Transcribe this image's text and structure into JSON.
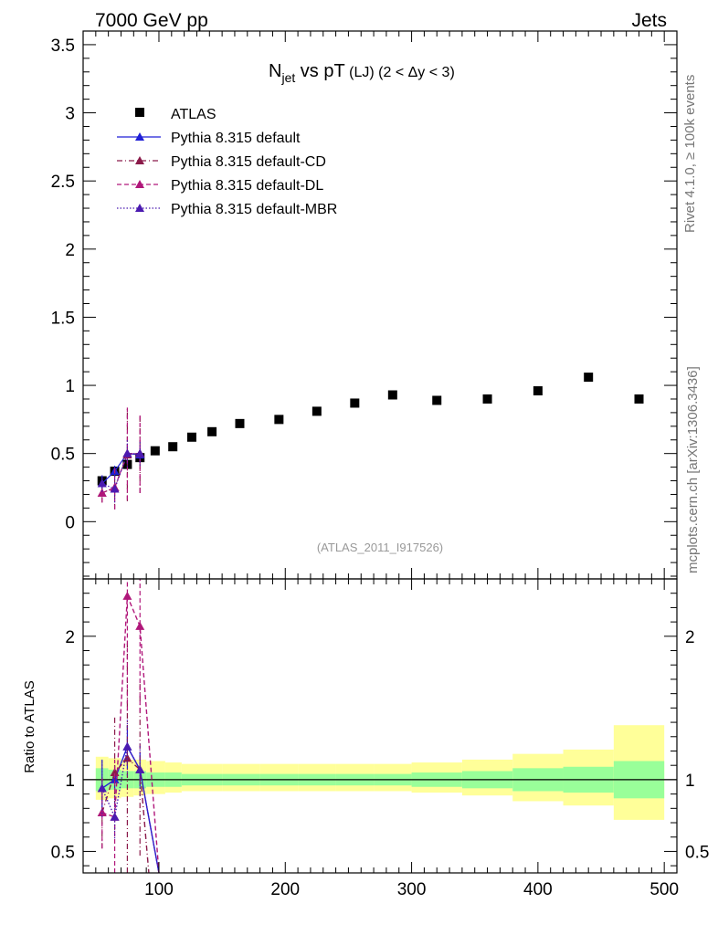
{
  "header": {
    "left": "7000 GeV pp",
    "right": "Jets"
  },
  "side_labels": {
    "rivet": "Rivet 4.1.0, ≥ 100k events",
    "mcplots": "mcplots.cern.ch [arXiv:1306.3436]"
  },
  "chart_data": {
    "type": "scatter",
    "title_main": "N",
    "title_sub": "jet",
    "title_rest": " vs pT",
    "title_small": " (LJ) ",
    "title_cond": "(2 < Δy < 3)",
    "analysis_tag": "(ATLAS_2011_I917526)",
    "x_axis": {
      "lim": [
        40,
        510
      ],
      "ticks": [
        100,
        200,
        300,
        400,
        500
      ],
      "tick_labels": [
        "100",
        "200",
        "300",
        "400",
        "500"
      ]
    },
    "main_panel": {
      "ylim": [
        -0.42,
        3.6
      ],
      "yticks": [
        0,
        0.5,
        1,
        1.5,
        2,
        2.5,
        3,
        3.5
      ],
      "ytick_labels": [
        "0",
        "0.5",
        "1",
        "1.5",
        "2",
        "2.5",
        "3",
        "3.5"
      ]
    },
    "ratio_panel": {
      "ylabel": "Ratio to ATLAS",
      "ylim": [
        0.35,
        2.4
      ],
      "yticks": [
        0.5,
        1,
        2
      ],
      "ytick_labels": [
        "0.5",
        "1",
        "2"
      ]
    },
    "legend": [
      {
        "label": "ATLAS",
        "color": "#000000",
        "style": "marker"
      },
      {
        "label": "Pythia 8.315 default",
        "color": "#1f1fd6",
        "style": "solid"
      },
      {
        "label": "Pythia 8.315 default-CD",
        "color": "#8b1a4a",
        "style": "dashdot"
      },
      {
        "label": "Pythia 8.315 default-DL",
        "color": "#b0177a",
        "style": "dashed"
      },
      {
        "label": "Pythia 8.315 default-MBR",
        "color": "#4b1ab0",
        "style": "dotted"
      }
    ],
    "atlas": {
      "x": [
        55,
        65,
        75,
        85,
        97,
        111,
        126,
        142,
        164,
        195,
        225,
        255,
        285,
        320,
        360,
        400,
        440,
        480
      ],
      "y": [
        0.3,
        0.37,
        0.42,
        0.47,
        0.52,
        0.55,
        0.62,
        0.66,
        0.72,
        0.75,
        0.81,
        0.87,
        0.93,
        0.89,
        0.9,
        0.96,
        1.06,
        0.9
      ],
      "bins": [
        [
          50,
          60
        ],
        [
          60,
          70
        ],
        [
          70,
          80
        ],
        [
          80,
          90
        ],
        [
          90,
          105
        ],
        [
          105,
          118
        ],
        [
          118,
          134
        ],
        [
          134,
          150
        ],
        [
          150,
          180
        ],
        [
          180,
          210
        ],
        [
          210,
          240
        ],
        [
          240,
          270
        ],
        [
          270,
          300
        ],
        [
          300,
          340
        ],
        [
          340,
          380
        ],
        [
          380,
          420
        ],
        [
          420,
          460
        ],
        [
          460,
          500
        ]
      ],
      "band_stat_lo": [
        0.92,
        0.93,
        0.94,
        0.94,
        0.95,
        0.95,
        0.96,
        0.96,
        0.96,
        0.96,
        0.96,
        0.96,
        0.96,
        0.95,
        0.94,
        0.92,
        0.91,
        0.87
      ],
      "band_stat_hi": [
        1.08,
        1.07,
        1.06,
        1.06,
        1.05,
        1.05,
        1.04,
        1.04,
        1.04,
        1.04,
        1.04,
        1.04,
        1.04,
        1.05,
        1.06,
        1.08,
        1.09,
        1.13
      ],
      "band_tot_lo": [
        0.86,
        0.87,
        0.88,
        0.89,
        0.9,
        0.91,
        0.92,
        0.92,
        0.92,
        0.92,
        0.92,
        0.92,
        0.92,
        0.91,
        0.89,
        0.85,
        0.82,
        0.72
      ],
      "band_tot_hi": [
        1.16,
        1.15,
        1.14,
        1.14,
        1.13,
        1.12,
        1.11,
        1.11,
        1.11,
        1.11,
        1.11,
        1.11,
        1.11,
        1.12,
        1.14,
        1.18,
        1.21,
        1.38
      ]
    },
    "series": [
      {
        "name": "Pythia 8.315 default",
        "color": "#1f1fd6",
        "dash": "",
        "x": [
          55,
          65,
          75,
          85
        ],
        "y": [
          0.28,
          0.37,
          0.5,
          0.49
        ],
        "err": [
          0.06,
          0.04,
          0.07,
          0.06
        ],
        "ratio": [
          0.94,
          1.0,
          1.23,
          1.07
        ],
        "ratio_err": [
          0.2,
          0.1,
          0.15,
          0.12
        ],
        "ratio_tail": [
          [
            85,
            1.07
          ],
          [
            100,
            0.2
          ]
        ]
      },
      {
        "name": "Pythia 8.315 default-CD",
        "color": "#8b1a4a",
        "dash": "6,3,1,3",
        "x": [
          55,
          65,
          75,
          85
        ],
        "y": [
          0.21,
          0.25,
          0.49,
          0.5
        ],
        "err": [
          0.07,
          0.16,
          0.34,
          0.29
        ],
        "ratio": [
          0.77,
          1.05,
          1.15,
          1.07
        ],
        "ratio_err": [
          0.25,
          0.4,
          0.8,
          0.6
        ],
        "ratio_tail": [
          [
            85,
            1.07
          ],
          [
            92,
            0.2
          ]
        ]
      },
      {
        "name": "Pythia 8.315 default-DL",
        "color": "#b0177a",
        "dash": "5,3",
        "x": [
          55,
          65,
          75,
          85
        ],
        "y": [
          0.21,
          0.25,
          0.5,
          0.5
        ],
        "err": [
          0.07,
          0.16,
          0.34,
          0.29
        ],
        "ratio": [
          0.77,
          0.74,
          2.28,
          2.07
        ],
        "ratio_err": [
          0.25,
          0.4,
          0.8,
          0.6
        ],
        "ratio_tail": [
          [
            85,
            2.07
          ],
          [
            100,
            0.2
          ]
        ]
      },
      {
        "name": "Pythia 8.315 default-MBR",
        "color": "#4b1ab0",
        "dash": "1.5,2",
        "x": [
          55,
          65,
          75,
          85
        ],
        "y": [
          0.28,
          0.24,
          0.5,
          0.5
        ],
        "err": [
          0.06,
          0.1,
          0.1,
          0.09
        ],
        "ratio": [
          0.94,
          0.74,
          1.23,
          1.07
        ],
        "ratio_err": [
          0.2,
          0.15,
          0.2,
          0.18
        ],
        "ratio_tail": [
          [
            85,
            1.07
          ],
          [
            100,
            0.2
          ]
        ]
      }
    ]
  }
}
